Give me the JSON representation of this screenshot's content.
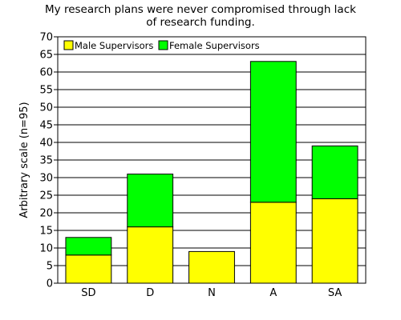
{
  "chart_data": {
    "type": "bar",
    "stacked": true,
    "title_lines": [
      "My research plans were never compromised through lack",
      "of research funding."
    ],
    "xlabel": "",
    "ylabel": "Arbitrary scale (n=95)",
    "categories": [
      "SD",
      "D",
      "N",
      "A",
      "SA"
    ],
    "series": [
      {
        "name": "Male Supervisors",
        "color": "#ffff00",
        "values": [
          8,
          16,
          9,
          23,
          24
        ]
      },
      {
        "name": "Female Supervisors",
        "color": "#00ff00",
        "values": [
          5,
          15,
          0,
          40,
          15
        ]
      }
    ],
    "ylim": [
      0,
      70
    ],
    "yticks": [
      "0",
      "5",
      "10",
      "15",
      "20",
      "25",
      "30",
      "35",
      "40",
      "45",
      "50",
      "55",
      "60",
      "65",
      "70"
    ],
    "grid": true,
    "legend_position": "top-left"
  }
}
